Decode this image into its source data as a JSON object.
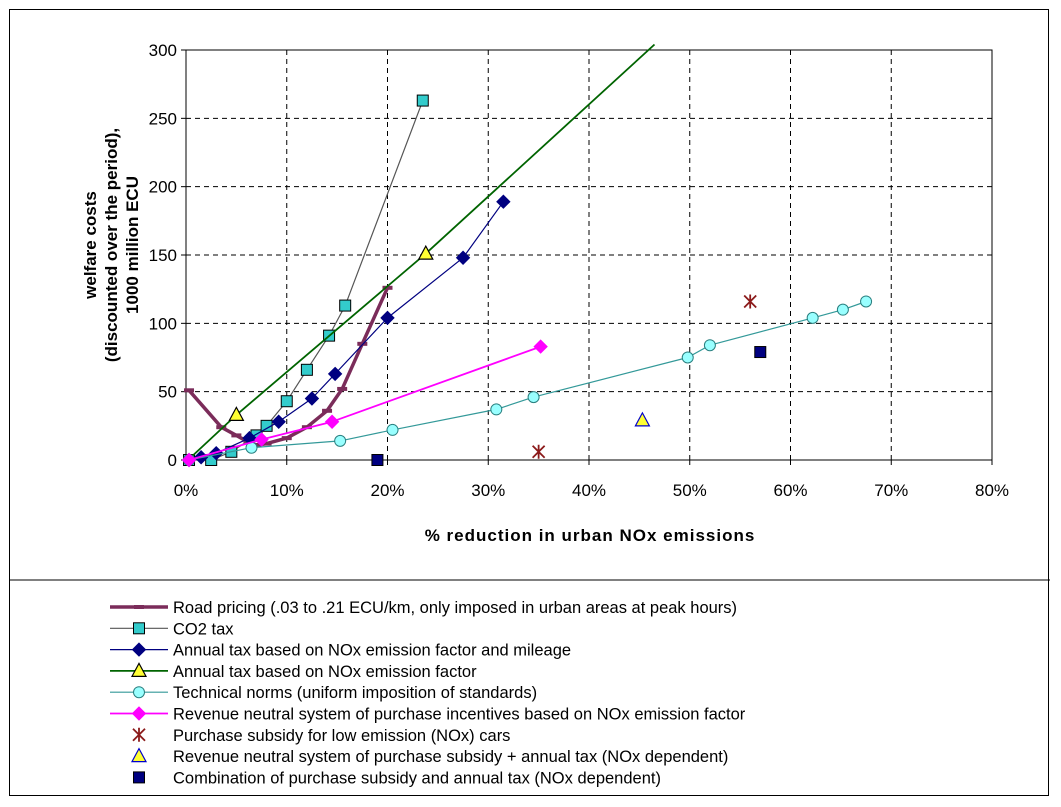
{
  "chart_data": {
    "type": "scatter",
    "xlabel": "% reduction in urban NOx emissions",
    "ylabel_line1": "welfare costs",
    "ylabel_line2": "(discounted over the period),",
    "ylabel_line3": "1000 million ECU",
    "xlim": [
      0,
      80
    ],
    "ylim": [
      0,
      300
    ],
    "x_ticks": [
      0,
      10,
      20,
      30,
      40,
      50,
      60,
      70,
      80
    ],
    "x_tick_labels": [
      "0%",
      "10%",
      "20%",
      "30%",
      "40%",
      "50%",
      "60%",
      "70%",
      "80%"
    ],
    "y_ticks": [
      0,
      50,
      100,
      150,
      200,
      250,
      300
    ],
    "y_tick_labels": [
      "0",
      "50",
      "100",
      "150",
      "200",
      "250",
      "300"
    ],
    "grid": "dashed",
    "legend_position": "bottom",
    "series": [
      {
        "name": "Road pricing (.03 to .21 ECU/km, only imposed in urban areas at peak hours)",
        "style": "line",
        "marker": "dash",
        "color": "#7B2C5A",
        "line_color": "#7B2C5A",
        "line_width": 3.5,
        "points": [
          [
            0.3,
            51
          ],
          [
            3.5,
            24
          ],
          [
            5.0,
            18
          ],
          [
            6.2,
            13
          ],
          [
            7.0,
            11
          ],
          [
            8.0,
            12
          ],
          [
            10.0,
            16
          ],
          [
            12.0,
            24
          ],
          [
            14.0,
            36
          ],
          [
            15.5,
            52
          ],
          [
            17.5,
            85
          ],
          [
            20.0,
            126
          ]
        ]
      },
      {
        "name": "CO2 tax",
        "style": "line",
        "marker": "square",
        "color": "#33CCCC",
        "line_color": "#555555",
        "line_width": 1.2,
        "points": [
          [
            0.3,
            0
          ],
          [
            2.5,
            0
          ],
          [
            4.5,
            6
          ],
          [
            7.0,
            18
          ],
          [
            8.0,
            25
          ],
          [
            10.0,
            43
          ],
          [
            12.0,
            66
          ],
          [
            14.2,
            91
          ],
          [
            15.8,
            113
          ],
          [
            23.5,
            263
          ]
        ]
      },
      {
        "name": "Annual tax based on NOx emission factor and mileage",
        "style": "line",
        "marker": "diamond",
        "color": "#000080",
        "line_color": "#000080",
        "line_width": 1.2,
        "points": [
          [
            0.3,
            0
          ],
          [
            1.5,
            2
          ],
          [
            3.0,
            5
          ],
          [
            6.3,
            16
          ],
          [
            9.2,
            28
          ],
          [
            12.5,
            45
          ],
          [
            14.8,
            63
          ],
          [
            20.0,
            104
          ],
          [
            27.5,
            148
          ],
          [
            31.5,
            189
          ]
        ]
      },
      {
        "name": "Annual tax based on NOx emission factor",
        "style": "line",
        "marker": "triangle",
        "color": "#FFFF33",
        "line_color": "#006400",
        "line_width": 1.8,
        "points": [
          [
            0.2,
            0
          ],
          [
            5.0,
            33
          ],
          [
            23.8,
            151
          ],
          [
            46.5,
            304
          ]
        ],
        "markers_at": [
          [
            5.0,
            33
          ],
          [
            23.8,
            151
          ]
        ]
      },
      {
        "name": "Technical norms (uniform imposition of standards)",
        "style": "line",
        "marker": "circle",
        "color": "#99FFFF",
        "line_color": "#339999",
        "line_width": 1.2,
        "points": [
          [
            0.3,
            0
          ],
          [
            6.5,
            9
          ],
          [
            15.3,
            14
          ],
          [
            20.5,
            22
          ],
          [
            30.8,
            37
          ],
          [
            34.5,
            46
          ],
          [
            49.8,
            75
          ],
          [
            52.0,
            84
          ],
          [
            62.2,
            104
          ],
          [
            65.2,
            110
          ],
          [
            67.5,
            116
          ]
        ]
      },
      {
        "name": "Revenue neutral system of purchase incentives based on NOx emission factor",
        "style": "line",
        "marker": "diamond",
        "color": "#FF00FF",
        "line_color": "#FF00FF",
        "line_width": 1.8,
        "points": [
          [
            0.3,
            0
          ],
          [
            7.5,
            15
          ],
          [
            14.5,
            28
          ],
          [
            35.2,
            83
          ]
        ]
      },
      {
        "name": "Purchase subsidy for low emission (NOx) cars",
        "style": "marker",
        "marker": "star",
        "color": "#8B1A1A",
        "points": [
          [
            35.0,
            6
          ],
          [
            56.0,
            116
          ]
        ]
      },
      {
        "name": "Revenue neutral system of purchase subsidy + annual tax (NOx dependent)",
        "style": "marker",
        "marker": "triangle",
        "color": "#FFFF33",
        "edge_color": "#0000CC",
        "points": [
          [
            45.3,
            29
          ]
        ]
      },
      {
        "name": "Combination of purchase subsidy and annual tax (NOx dependent)",
        "style": "marker",
        "marker": "square",
        "color": "#000080",
        "points": [
          [
            19.0,
            0
          ],
          [
            57.0,
            79
          ]
        ]
      }
    ]
  }
}
